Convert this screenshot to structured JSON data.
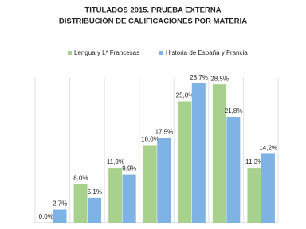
{
  "chart_data": {
    "type": "bar",
    "title": [
      "TITULADOS 2015. PRUEBA EXTERNA",
      "DISTRIBUCIÓN DE CALIFICACIONES  POR MATERIA"
    ],
    "categories": [
      null,
      null,
      null,
      null,
      null,
      null,
      null
    ],
    "series": [
      {
        "name": "Lengua y Lª Francesas",
        "color": "#a9d18e",
        "values": [
          0.0,
          8.0,
          11.3,
          16.0,
          25.0,
          28.5,
          11.3
        ],
        "value_labels": [
          "0,0%",
          "8,0%",
          "11,3%",
          "16,0%",
          "25,0%",
          "28,5%",
          "11,3%"
        ]
      },
      {
        "name": "Historia de España y Francia",
        "color": "#7fb2e5",
        "values": [
          2.7,
          5.1,
          9.9,
          17.5,
          28.7,
          21.8,
          14.2
        ],
        "value_labels": [
          "2,7%",
          "5,1%",
          "9,9%",
          "17,5%",
          "28,7%",
          "21,8%",
          "14,2%"
        ]
      }
    ],
    "ylim": [
      0,
      30
    ]
  }
}
